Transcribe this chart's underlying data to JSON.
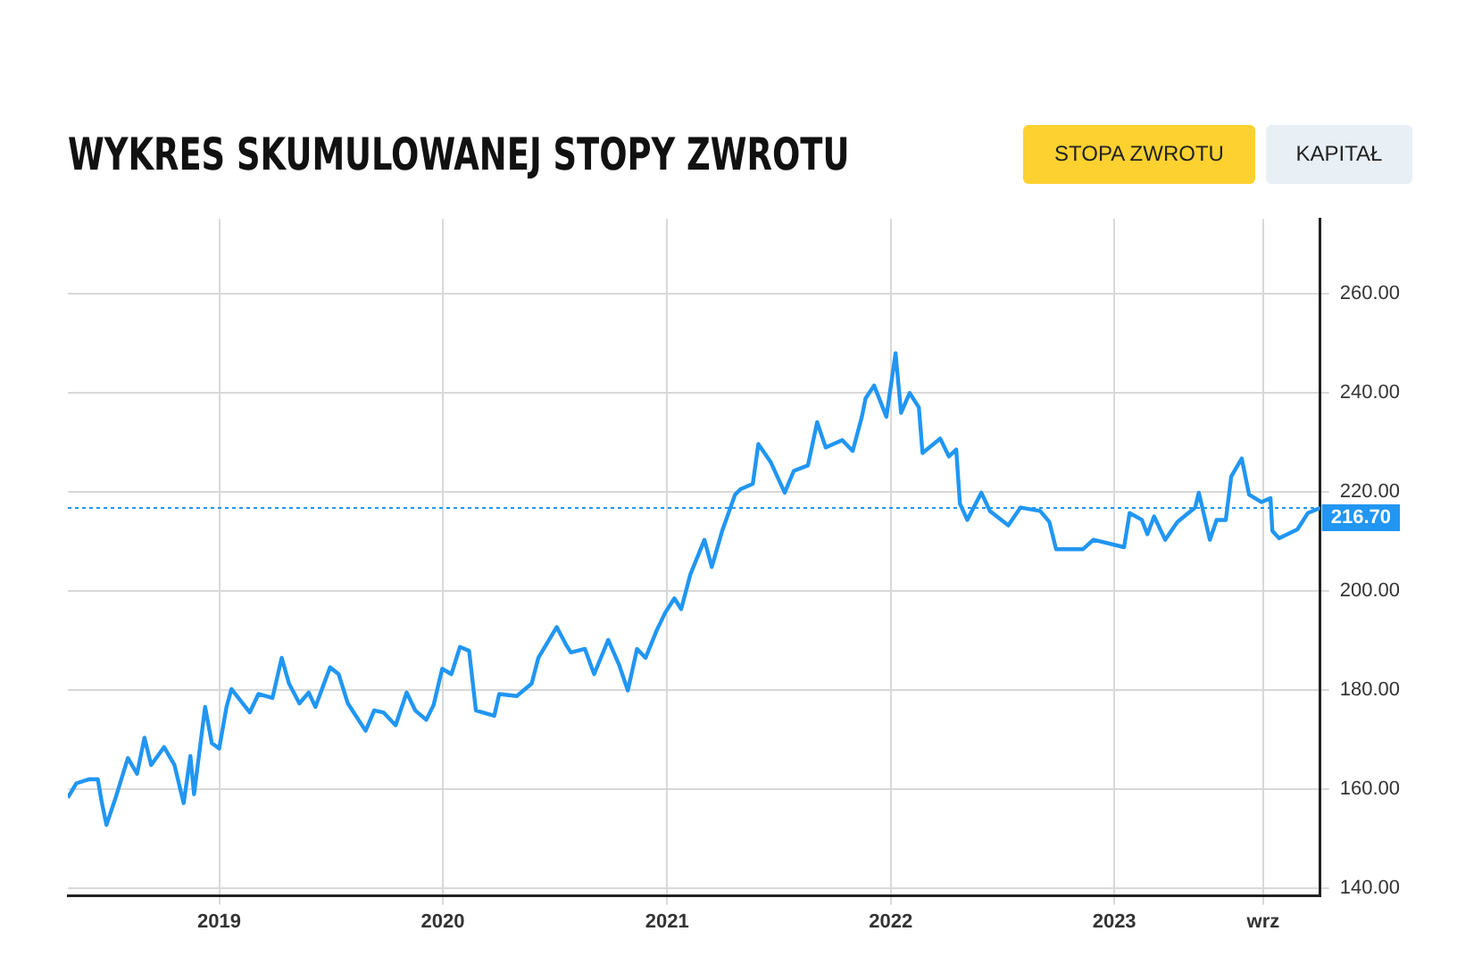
{
  "chart_data": {
    "type": "line",
    "title": "WYKRES SKUMULOWANEJ STOPY ZWROTU",
    "annotations": [
      "STOPA ZWROTU",
      "KAPITAŁ"
    ],
    "x": [
      "2018-04-29",
      "2018-05-13",
      "2018-06-02",
      "2018-06-17",
      "2018-06-23",
      "2018-07-01",
      "2018-07-16",
      "2018-08-05",
      "2018-08-20",
      "2018-09-01",
      "2018-09-12",
      "2018-10-03",
      "2018-10-20",
      "2018-11-04",
      "2018-11-15",
      "2018-11-21",
      "2018-12-09",
      "2018-12-20",
      "2019-01-01",
      "2019-01-13",
      "2019-01-21",
      "2019-02-20",
      "2019-03-06",
      "2019-03-29",
      "2019-04-13",
      "2019-04-25",
      "2019-05-12",
      "2019-05-27",
      "2019-06-07",
      "2019-07-01",
      "2019-07-15",
      "2019-07-30",
      "2019-08-28",
      "2019-09-11",
      "2019-09-26",
      "2019-10-16",
      "2019-11-03",
      "2019-11-17",
      "2019-12-05",
      "2019-12-17",
      "2019-12-31",
      "2020-01-15",
      "2020-01-29",
      "2020-02-13",
      "2020-02-24",
      "2020-03-25",
      "2020-04-02",
      "2020-05-01",
      "2020-05-25",
      "2020-06-05",
      "2020-07-05",
      "2020-07-19",
      "2020-07-28",
      "2020-08-20",
      "2020-09-04",
      "2020-09-27",
      "2020-10-15",
      "2020-10-29",
      "2020-11-13",
      "2020-11-27",
      "2020-12-15",
      "2020-12-29",
      "2021-01-13",
      "2021-01-24",
      "2021-02-08",
      "2021-03-03",
      "2021-03-15",
      "2021-04-01",
      "2021-04-22",
      "2021-05-01",
      "2021-05-21",
      "2021-05-30",
      "2021-06-19",
      "2021-07-12",
      "2021-07-27",
      "2021-08-19",
      "2021-09-03",
      "2021-09-17",
      "2021-10-14",
      "2021-10-31",
      "2021-11-15",
      "2021-11-21",
      "2021-12-05",
      "2021-12-25",
      "2022-01-09",
      "2022-01-18",
      "2022-02-01",
      "2022-02-16",
      "2022-02-22",
      "2022-03-23",
      "2022-04-06",
      "2022-04-18",
      "2022-04-24",
      "2022-05-06",
      "2022-05-29",
      "2022-06-12",
      "2022-07-12",
      "2022-08-01",
      "2022-09-02",
      "2022-09-17",
      "2022-09-28",
      "2022-11-11",
      "2022-11-28",
      "2023-01-17",
      "2023-01-26",
      "2023-02-15",
      "2023-02-24",
      "2023-03-07",
      "2023-03-25",
      "2023-04-14",
      "2023-05-13",
      "2023-05-19",
      "2023-06-06",
      "2023-06-17",
      "2023-07-02",
      "2023-07-11",
      "2023-07-28",
      "2023-08-09",
      "2023-08-29",
      "2023-09-13",
      "2023-09-16",
      "2023-09-27",
      "2023-10-27",
      "2023-11-13",
      "2023-12-03"
    ],
    "series": [
      {
        "color": "#2196f3",
        "values": [
          158.3,
          161.2,
          162.0,
          162.0,
          157.6,
          152.8,
          158.3,
          166.3,
          163.1,
          170.4,
          164.9,
          168.5,
          164.9,
          157.2,
          166.7,
          159.0,
          176.6,
          169.3,
          168.2,
          176.6,
          180.2,
          175.5,
          179.2,
          178.4,
          186.5,
          181.3,
          177.3,
          179.5,
          176.6,
          184.6,
          183.2,
          177.3,
          171.8,
          175.9,
          175.5,
          172.9,
          179.5,
          175.9,
          174.0,
          177.0,
          184.3,
          183.2,
          188.7,
          187.9,
          175.9,
          174.8,
          179.2,
          178.8,
          181.3,
          186.5,
          192.7,
          189.4,
          187.6,
          188.3,
          183.2,
          190.1,
          185.0,
          179.9,
          188.3,
          186.5,
          192.0,
          195.6,
          198.5,
          196.3,
          203.3,
          210.3,
          204.8,
          212.1,
          219.4,
          220.5,
          221.6,
          229.6,
          226.0,
          219.8,
          224.2,
          225.3,
          234.0,
          228.9,
          230.4,
          228.2,
          235.1,
          238.8,
          241.4,
          235.1,
          247.9,
          235.9,
          239.9,
          237.0,
          227.8,
          230.7,
          227.1,
          228.5,
          217.6,
          214.3,
          219.8,
          216.1,
          213.2,
          216.8,
          216.1,
          213.9,
          208.4,
          208.4,
          210.3,
          208.8,
          215.7,
          214.3,
          211.4,
          215.0,
          210.3,
          213.9,
          216.8,
          219.8,
          210.3,
          214.3,
          214.3,
          223.1,
          226.7,
          219.4,
          217.9,
          218.7,
          212.1,
          210.6,
          212.4,
          215.7,
          216.7
        ]
      }
    ],
    "xlim": [
      "2018-04-29",
      "2023-12-03"
    ],
    "xticks": [
      {
        "value": "2019-01-01",
        "label": "2019"
      },
      {
        "value": "2020-01-01",
        "label": "2020"
      },
      {
        "value": "2021-01-01",
        "label": "2021"
      },
      {
        "value": "2022-01-01",
        "label": "2022"
      },
      {
        "value": "2023-01-01",
        "label": "2023"
      },
      {
        "value": "2023-09-01",
        "label": "wrz"
      }
    ],
    "ylim": [
      138.5,
      275
    ],
    "yticks": [
      {
        "value": 140,
        "label": "140.00"
      },
      {
        "value": 160,
        "label": "160.00"
      },
      {
        "value": 180,
        "label": "180.00"
      },
      {
        "value": 200,
        "label": "200.00"
      },
      {
        "value": 220,
        "label": "220.00"
      },
      {
        "value": 240,
        "label": "240.00"
      },
      {
        "value": 260,
        "label": "260.00"
      }
    ],
    "ref_lines": [
      {
        "axis": "y",
        "value": 216.7,
        "label": "216.70",
        "color": "#2196f3",
        "line_style": "dotted"
      }
    ],
    "grid": true,
    "legend": false,
    "marker": "none",
    "line_style": "solid"
  }
}
